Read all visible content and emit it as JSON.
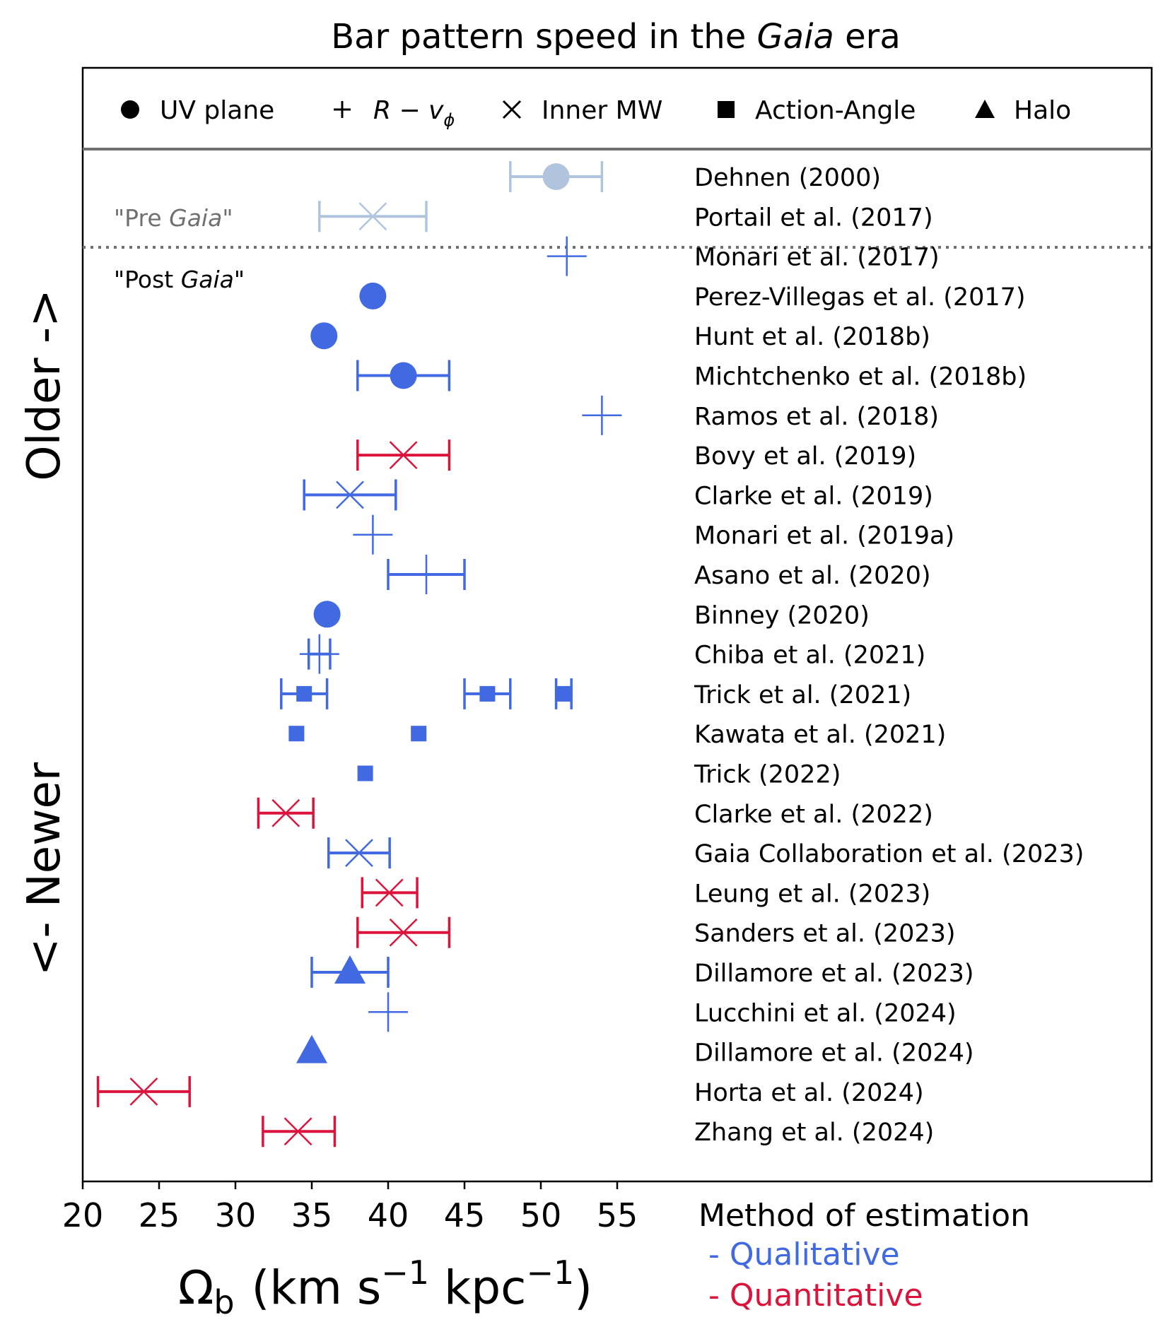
{
  "chart_data": {
    "type": "scatter",
    "title": "Bar pattern speed in the ",
    "title_emph": "Gaia",
    "title_suffix": " era",
    "xlabel": "Ω",
    "xlabel_sub": "b",
    "xlabel_units": "(km s",
    "xlabel_units_sup": "−1",
    "xlabel_units_mid": " kpc",
    "xlabel_units_sup2": "−1",
    "xlabel_units_end": ")",
    "xlim": [
      20,
      90
    ],
    "xticks": [
      20,
      25,
      30,
      35,
      40,
      45,
      50,
      55
    ],
    "ylabel_older": "Older ->",
    "ylabel_newer": "<- Newer",
    "legend": [
      {
        "marker": "circle",
        "label": "UV plane"
      },
      {
        "marker": "plus",
        "label": "R − v",
        "sub": "ϕ"
      },
      {
        "marker": "x",
        "label": "Inner MW"
      },
      {
        "marker": "square",
        "label": "Action-Angle"
      },
      {
        "marker": "triangle",
        "label": "Halo"
      }
    ],
    "section_pre": {
      "prefix": "\"Pre ",
      "emph": "Gaia",
      "suffix": "\""
    },
    "section_post": {
      "prefix": "\"Post ",
      "emph": "Gaia",
      "suffix": "\""
    },
    "method_title": "Method of estimation",
    "method_items": [
      {
        "label": "- Qualitative",
        "color": "#4169e1"
      },
      {
        "label": "- Quantitative",
        "color": "#dc143c"
      }
    ],
    "colors": {
      "pre": "#b0c4de",
      "qualitative": "#4169e1",
      "quantitative": "#dc143c"
    },
    "studies": [
      {
        "label": "Dehnen (2000)",
        "group": "pre",
        "points": [
          {
            "x": 51,
            "marker": "circle",
            "err": [
              48,
              54
            ]
          }
        ]
      },
      {
        "label": "Portail et al. (2017)",
        "group": "pre",
        "points": [
          {
            "x": 39,
            "marker": "x",
            "err": [
              35.5,
              42.5
            ]
          }
        ]
      },
      {
        "label": "Monari et al. (2017)",
        "group": "qualitative",
        "points": [
          {
            "x": 51.7,
            "marker": "plus"
          }
        ]
      },
      {
        "label": "Perez-Villegas et al. (2017)",
        "group": "qualitative",
        "points": [
          {
            "x": 39,
            "marker": "circle"
          }
        ]
      },
      {
        "label": "Hunt et al. (2018b)",
        "group": "qualitative",
        "points": [
          {
            "x": 35.8,
            "marker": "circle"
          }
        ]
      },
      {
        "label": "Michtchenko et al. (2018b)",
        "group": "qualitative",
        "points": [
          {
            "x": 41,
            "marker": "circle",
            "err": [
              38,
              44
            ]
          }
        ]
      },
      {
        "label": "Ramos et al. (2018)",
        "group": "qualitative",
        "points": [
          {
            "x": 54,
            "marker": "plus"
          }
        ]
      },
      {
        "label": "Bovy et al. (2019)",
        "group": "quantitative",
        "points": [
          {
            "x": 41,
            "marker": "x",
            "err": [
              38,
              44
            ]
          }
        ]
      },
      {
        "label": "Clarke et al. (2019)",
        "group": "qualitative",
        "points": [
          {
            "x": 37.5,
            "marker": "x",
            "err": [
              34.5,
              40.5
            ]
          }
        ]
      },
      {
        "label": "Monari et al. (2019a)",
        "group": "qualitative",
        "points": [
          {
            "x": 39,
            "marker": "plus"
          }
        ]
      },
      {
        "label": "Asano et al. (2020)",
        "group": "qualitative",
        "points": [
          {
            "x": 42.5,
            "marker": "plus",
            "err": [
              40,
              45
            ]
          }
        ]
      },
      {
        "label": "Binney (2020)",
        "group": "qualitative",
        "points": [
          {
            "x": 36,
            "marker": "circle"
          }
        ]
      },
      {
        "label": "Chiba et al. (2021)",
        "group": "qualitative",
        "points": [
          {
            "x": 35.5,
            "marker": "plus",
            "err": [
              34.8,
              36.2
            ]
          }
        ]
      },
      {
        "label": "Trick et al. (2021)",
        "group": "qualitative",
        "points": [
          {
            "x": 34.5,
            "marker": "square",
            "err": [
              33,
              36
            ]
          },
          {
            "x": 46.5,
            "marker": "square",
            "err": [
              45,
              48
            ]
          },
          {
            "x": 51.5,
            "marker": "square",
            "err": [
              51,
              52
            ]
          }
        ]
      },
      {
        "label": "Kawata et al. (2021)",
        "group": "qualitative",
        "points": [
          {
            "x": 34,
            "marker": "square"
          },
          {
            "x": 42,
            "marker": "square"
          }
        ]
      },
      {
        "label": "Trick (2022)",
        "group": "qualitative",
        "points": [
          {
            "x": 38.5,
            "marker": "square"
          }
        ]
      },
      {
        "label": "Clarke et al. (2022)",
        "group": "quantitative",
        "points": [
          {
            "x": 33.3,
            "marker": "x",
            "err": [
              31.5,
              35.1
            ]
          }
        ]
      },
      {
        "label": "Gaia Collaboration et al. (2023)",
        "group": "qualitative",
        "points": [
          {
            "x": 38.1,
            "marker": "x",
            "err": [
              36.1,
              40.1
            ]
          }
        ]
      },
      {
        "label": "Leung et al. (2023)",
        "group": "quantitative",
        "points": [
          {
            "x": 40.08,
            "marker": "x",
            "err": [
              38.3,
              41.9
            ]
          }
        ]
      },
      {
        "label": "Sanders et al. (2023)",
        "group": "quantitative",
        "points": [
          {
            "x": 41,
            "marker": "x",
            "err": [
              38,
              44
            ]
          }
        ]
      },
      {
        "label": "Dillamore et al. (2023)",
        "group": "qualitative",
        "points": [
          {
            "x": 37.5,
            "marker": "triangle",
            "err": [
              35,
              40
            ]
          }
        ]
      },
      {
        "label": "Lucchini et al. (2024)",
        "group": "qualitative",
        "points": [
          {
            "x": 40,
            "marker": "plus"
          }
        ]
      },
      {
        "label": "Dillamore et al. (2024)",
        "group": "qualitative",
        "points": [
          {
            "x": 35,
            "marker": "triangle"
          }
        ]
      },
      {
        "label": "Horta et al. (2024)",
        "group": "quantitative",
        "points": [
          {
            "x": 24,
            "marker": "x",
            "err": [
              21,
              27
            ]
          }
        ]
      },
      {
        "label": "Zhang et al. (2024)",
        "group": "quantitative",
        "points": [
          {
            "x": 34.1,
            "marker": "x",
            "err": [
              31.8,
              36.5
            ]
          }
        ]
      }
    ]
  }
}
